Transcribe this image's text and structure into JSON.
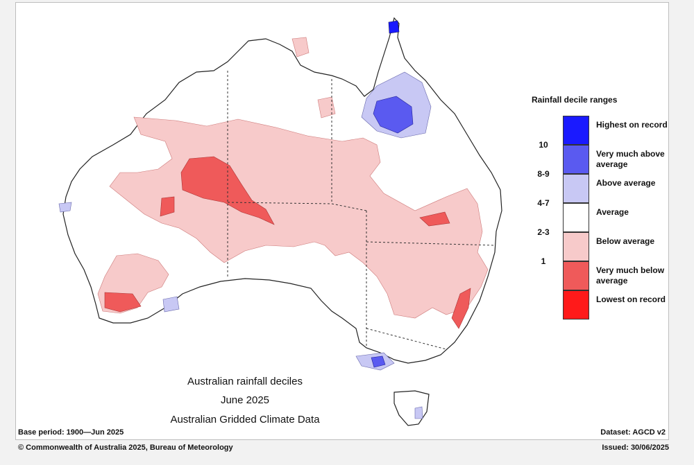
{
  "title_lines": [
    "Australian rainfall deciles",
    "June 2025",
    "Australian Gridded Climate Data"
  ],
  "base_period": "Base period: 1900—Jun 2025",
  "dataset": "Dataset: AGCD v2",
  "copyright": "© Commonwealth of Australia 2025, Bureau of Meteorology",
  "issued": "Issued: 30/06/2025",
  "legend": {
    "title": "Rainfall decile ranges",
    "items": [
      {
        "rank": "",
        "label": "Highest on record",
        "color": "#1a1aff"
      },
      {
        "rank": "10",
        "label": "Very much above average",
        "color": "#5a5af0"
      },
      {
        "rank": "8-9",
        "label": "Above average",
        "color": "#c8c8f4"
      },
      {
        "rank": "4-7",
        "label": "Average",
        "color": "#ffffff"
      },
      {
        "rank": "2-3",
        "label": "Below average",
        "color": "#f7caca"
      },
      {
        "rank": "1",
        "label": "Very much below average",
        "color": "#ef5a5a"
      },
      {
        "rank": "",
        "label": "Lowest on record",
        "color": "#ff1a1a"
      }
    ]
  },
  "colors": {
    "below": "#f7caca",
    "very_below": "#ef5a5a",
    "above": "#c8c8f4",
    "very_above": "#5a5af0",
    "highest": "#1a1aff"
  }
}
